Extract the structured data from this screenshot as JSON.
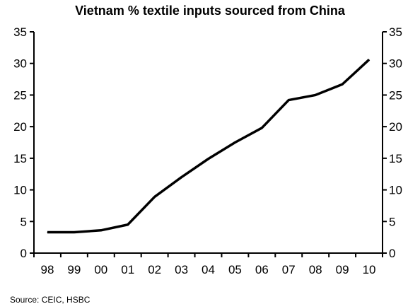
{
  "chart_data": {
    "type": "line",
    "title": "Vietnam % textile inputs sourced from China",
    "xlabel": "",
    "ylabel": "",
    "categories": [
      "98",
      "99",
      "00",
      "01",
      "02",
      "03",
      "04",
      "05",
      "06",
      "07",
      "08",
      "09",
      "10"
    ],
    "series": [
      {
        "values": [
          3.3,
          3.3,
          3.6,
          4.5,
          8.9,
          12.0,
          14.9,
          17.5,
          19.8,
          24.2,
          25.0,
          26.7,
          30.6
        ]
      }
    ],
    "ylim": [
      0,
      35
    ],
    "yticks": [
      "0",
      "5",
      "10",
      "15",
      "20",
      "25",
      "30",
      "35"
    ],
    "right_axis": true,
    "grid": false,
    "legend": "none",
    "line_color": "#000000",
    "source": "Source: CEIC, HSBC"
  }
}
